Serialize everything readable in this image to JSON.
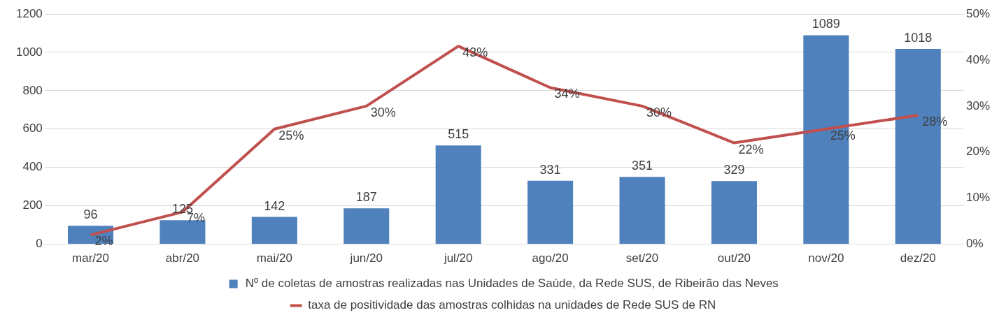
{
  "chart_data": {
    "type": "bar",
    "categories": [
      "mar/20",
      "abr/20",
      "mai/20",
      "jun/20",
      "jul/20",
      "ago/20",
      "set/20",
      "out/20",
      "nov/20",
      "dez/20"
    ],
    "series": [
      {
        "name": "Nº de coletas de amostras realizadas nas Unidades de Saúde, da Rede SUS, de Ribeirão das Neves",
        "color": "#4f81bd",
        "values": [
          96,
          125,
          142,
          187,
          515,
          331,
          351,
          329,
          1089,
          1018
        ],
        "value_labels": [
          "96",
          "125",
          "142",
          "187",
          "515",
          "331",
          "351",
          "329",
          "1089",
          "1018"
        ]
      },
      {
        "name": "taxa de positividade das amostras colhidas na unidades de Rede SUS de RN",
        "type": "line",
        "axis": "y2",
        "color": "#c0504d",
        "values": [
          2,
          7,
          25,
          30,
          43,
          34,
          30,
          22,
          25,
          28
        ],
        "value_labels": [
          "2%",
          "7%",
          "25%",
          "30%",
          "43%",
          "34%",
          "30%",
          "22%",
          "25%",
          "28%"
        ]
      }
    ],
    "ylim": [
      0,
      1200
    ],
    "yticks": [
      0,
      200,
      400,
      600,
      800,
      1000,
      1200
    ],
    "y2lim": [
      0,
      50
    ],
    "y2ticks": [
      {
        "value": 0,
        "label": "0%"
      },
      {
        "value": 10,
        "label": "10%"
      },
      {
        "value": 20,
        "label": "20%"
      },
      {
        "value": 30,
        "label": "30%"
      },
      {
        "value": 40,
        "label": "40%"
      },
      {
        "value": 50,
        "label": "50%"
      }
    ],
    "grid": "y",
    "legend": "bottom",
    "marker": "none"
  }
}
